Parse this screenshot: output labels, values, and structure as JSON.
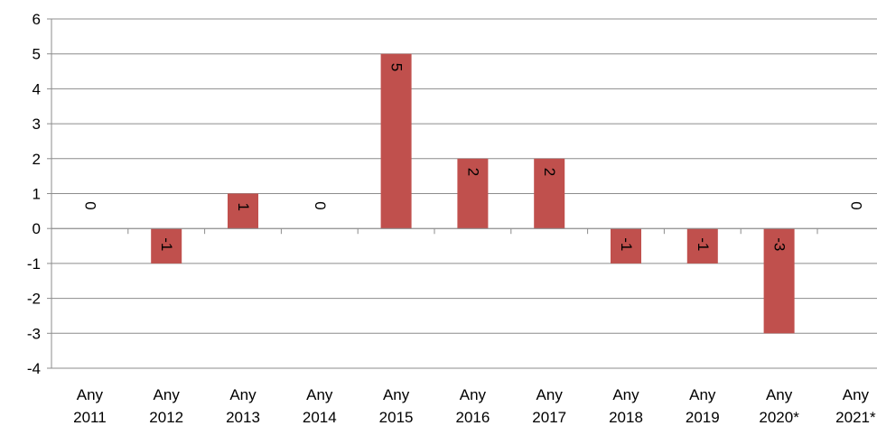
{
  "chart_data": {
    "type": "bar",
    "title": "",
    "xlabel": "",
    "ylabel": "",
    "categories": [
      [
        "Any",
        "2011"
      ],
      [
        "Any",
        "2012"
      ],
      [
        "Any",
        "2013"
      ],
      [
        "Any",
        "2014"
      ],
      [
        "Any",
        "2015"
      ],
      [
        "Any",
        "2016"
      ],
      [
        "Any",
        "2017"
      ],
      [
        "Any",
        "2018"
      ],
      [
        "Any",
        "2019"
      ],
      [
        "Any",
        "2020*"
      ],
      [
        "Any",
        "2021*"
      ]
    ],
    "values": [
      0,
      -1,
      1,
      0,
      5,
      2,
      2,
      -1,
      -1,
      -3,
      0
    ],
    "data_labels": [
      "0",
      "-1",
      "1",
      "0",
      "5",
      "2",
      "2",
      "-1",
      "-1",
      "-3",
      "0"
    ],
    "ylim": [
      -4,
      6
    ],
    "yticks": [
      "6",
      "5",
      "4",
      "3",
      "2",
      "1",
      "0",
      "-1",
      "-2",
      "-3",
      "-4"
    ],
    "grid": true,
    "legend": "none",
    "colors": {
      "bar": "#c0504d",
      "grid": "#8c8c8c",
      "axis": "#8c8c8c",
      "text": "#000000"
    }
  }
}
